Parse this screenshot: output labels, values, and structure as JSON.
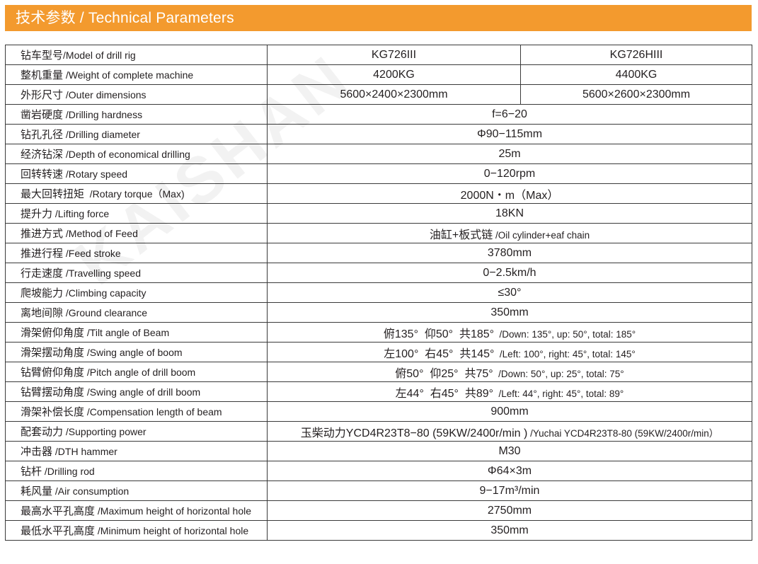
{
  "header": {
    "title": "技术参数 / Technical Parameters"
  },
  "watermark": "KAISHAN",
  "rows": [
    {
      "cn": "钻车型号",
      "en": "/Model of drill rig",
      "values": [
        "KG726III",
        "KG726HIII"
      ]
    },
    {
      "cn": "整机重量",
      "en": " /Weight of complete machine",
      "values": [
        "4200KG",
        "4400KG"
      ]
    },
    {
      "cn": "外形尺寸",
      "en": " /Outer dimensions",
      "values": [
        "5600×2400×2300mm",
        "5600×2600×2300mm"
      ]
    },
    {
      "cn": "凿岩硬度",
      "en": " /Drilling hardness",
      "values": [
        "f=6−20"
      ]
    },
    {
      "cn": "钻孔孔径",
      "en": " /Drilling diameter",
      "values": [
        "Φ90−115mm"
      ]
    },
    {
      "cn": "经济钻深",
      "en": " /Depth of economical drilling",
      "values": [
        "25m"
      ]
    },
    {
      "cn": "回转转速",
      "en": " /Rotary speed",
      "values": [
        "0−120rpm"
      ]
    },
    {
      "cn": "最大回转扭矩",
      "en": "  /Rotary torque（Max)",
      "values": [
        "2000N・m（Max）"
      ]
    },
    {
      "cn": "提升力",
      "en": " /Lifting force",
      "values": [
        "18KN"
      ]
    },
    {
      "cn": "推进方式",
      "en": " /Method of Feed",
      "values": [
        "油缸+板式链"
      ],
      "values_en": [
        " /Oil cylinder+eaf chain"
      ]
    },
    {
      "cn": "推进行程",
      "en": " /Feed stroke",
      "values": [
        "3780mm"
      ]
    },
    {
      "cn": "行走速度",
      "en": " /Travelling speed",
      "values": [
        "0−2.5km/h"
      ]
    },
    {
      "cn": "爬坡能力",
      "en": " /Climbing capacity",
      "values": [
        "≤30°"
      ]
    },
    {
      "cn": "离地间隙",
      "en": " /Ground clearance",
      "values": [
        "350mm"
      ]
    },
    {
      "cn": "滑架俯仰角度",
      "en": " /Tilt angle of Beam",
      "values": [
        "俯135°  仰50°  共185°"
      ],
      "values_en": [
        "  /Down: 135°, up: 50°, total: 185°"
      ]
    },
    {
      "cn": "滑架摆动角度",
      "en": " /Swing angle of boom",
      "values": [
        "左100°  右45°  共145°"
      ],
      "values_en": [
        "  /Left: 100°, right: 45°, total: 145°"
      ]
    },
    {
      "cn": "钻臂俯仰角度",
      "en": " /Pitch angle of drill boom",
      "values": [
        "俯50°  仰25°  共75°"
      ],
      "values_en": [
        "  /Down: 50°, up: 25°, total: 75°"
      ]
    },
    {
      "cn": "钻臂摆动角度",
      "en": " /Swing angle of drill boom",
      "values": [
        "左44°  右45°  共89°"
      ],
      "values_en": [
        "  /Left: 44°, right: 45°, total: 89°"
      ]
    },
    {
      "cn": "滑架补偿长度",
      "en": " /Compensation length of beam",
      "values": [
        "900mm"
      ]
    },
    {
      "cn": "配套动力",
      "en": " /Supporting power",
      "values": [
        "玉柴动力YCD4R23T8−80 (59KW/2400r/min )"
      ],
      "values_en": [
        " /Yuchai YCD4R23T8-80 (59KW/2400r/min）"
      ]
    },
    {
      "cn": "冲击器",
      "en": " /DTH hammer",
      "values": [
        "M30"
      ]
    },
    {
      "cn": "钻杆",
      "en": " /Drilling rod",
      "values": [
        "Φ64×3m"
      ]
    },
    {
      "cn": "耗风量",
      "en": " /Air consumption",
      "values": [
        "9−17m³/min"
      ]
    },
    {
      "cn": "最高水平孔高度",
      "en": " /Maximum height of horizontal hole",
      "values": [
        "2750mm"
      ]
    },
    {
      "cn": "最低水平孔高度",
      "en": " /Minimum height of horizontal hole",
      "values": [
        "350mm"
      ]
    }
  ]
}
